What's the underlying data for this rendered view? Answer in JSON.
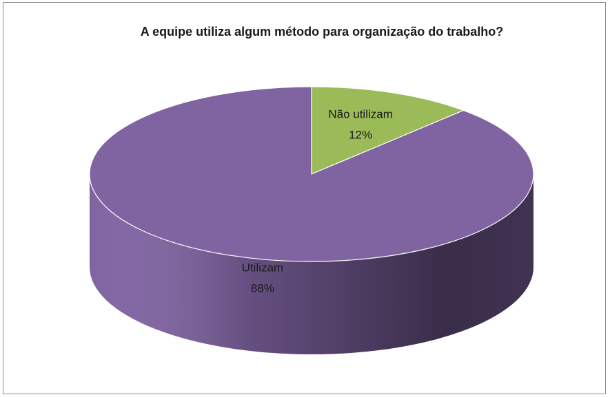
{
  "chart_data": {
    "type": "pie3d",
    "title": "A equipe utiliza algum método para organização do trabalho?",
    "categories": [
      "Não utilizam",
      "Utilizam"
    ],
    "values": [
      12,
      88
    ],
    "value_labels": [
      "12%",
      "88%"
    ],
    "colors": [
      "#9bbb59",
      "#8064a2"
    ]
  }
}
